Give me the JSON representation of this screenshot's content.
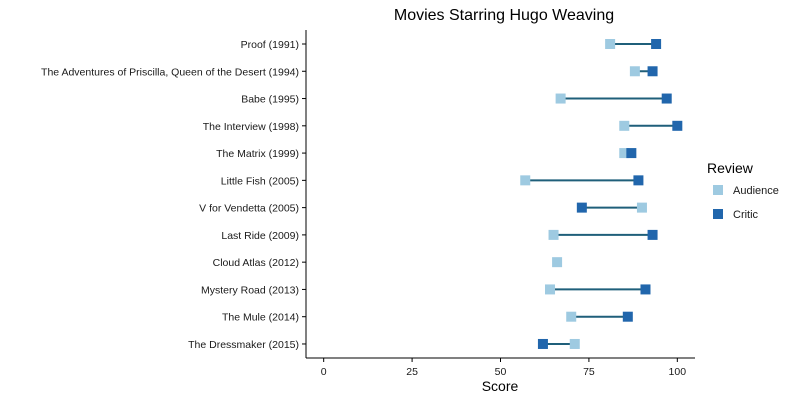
{
  "chart_data": {
    "type": "dumbbell",
    "title": "Movies Starring Hugo Weaving",
    "xlabel": "Score",
    "ylabel": "",
    "xlim": [
      -5,
      105
    ],
    "xticks": [
      0,
      25,
      50,
      75,
      100
    ],
    "grid": false,
    "legend": {
      "title": "Review",
      "placement": "right",
      "entries": [
        {
          "name": "Audience",
          "color": "#9ecae1"
        },
        {
          "name": "Critic",
          "color": "#2166ac"
        }
      ]
    },
    "connector_color": "#1f5f7a",
    "categories": [
      "Proof (1991)",
      "The Adventures of Priscilla, Queen of the Desert (1994)",
      "Babe (1995)",
      "The Interview (1998)",
      "The Matrix (1999)",
      "Little Fish (2005)",
      "V for Vendetta (2005)",
      "Last Ride (2009)",
      "Cloud Atlas (2012)",
      "Mystery Road (2013)",
      "The Mule (2014)",
      "The Dressmaker (2015)"
    ],
    "series": [
      {
        "name": "Audience",
        "color": "#9ecae1",
        "values": [
          81,
          88,
          67,
          85,
          85,
          57,
          90,
          65,
          66,
          64,
          70,
          71
        ]
      },
      {
        "name": "Critic",
        "color": "#2166ac",
        "values": [
          94,
          93,
          97,
          100,
          87,
          89,
          73,
          93,
          null,
          91,
          86,
          62
        ]
      }
    ]
  }
}
